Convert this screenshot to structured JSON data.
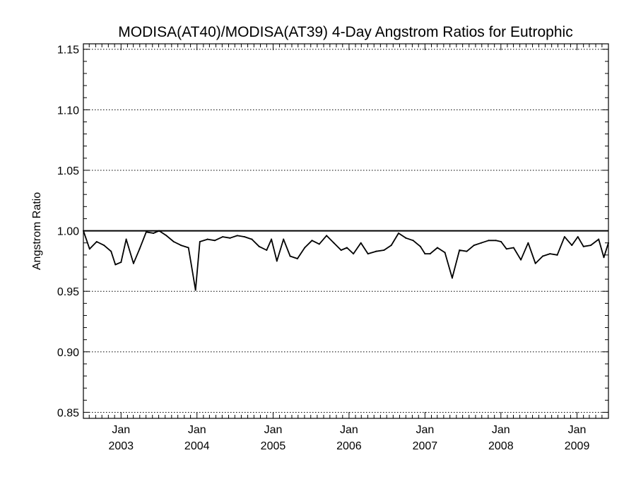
{
  "chart_data": {
    "type": "line",
    "title": "MODISA(AT40)/MODISA(AT39) 4-Day Angstrom Ratios for Eutrophic",
    "xlabel": "",
    "ylabel": "Angstrom Ratio",
    "ylim": [
      0.845,
      1.1545
    ],
    "yticks": [
      0.85,
      0.9,
      0.95,
      1.0,
      1.05,
      1.1,
      1.15
    ],
    "ytick_labels": [
      "0.85",
      "0.90",
      "0.95",
      "1.00",
      "1.05",
      "1.10",
      "1.15"
    ],
    "xlim": [
      "2002-07-04",
      "2009-06-01"
    ],
    "xticks": [
      {
        "date": "2003-01-01",
        "month": "Jan",
        "year": "2003"
      },
      {
        "date": "2004-01-01",
        "month": "Jan",
        "year": "2004"
      },
      {
        "date": "2005-01-01",
        "month": "Jan",
        "year": "2005"
      },
      {
        "date": "2006-01-01",
        "month": "Jan",
        "year": "2006"
      },
      {
        "date": "2007-01-01",
        "month": "Jan",
        "year": "2007"
      },
      {
        "date": "2008-01-01",
        "month": "Jan",
        "year": "2008"
      },
      {
        "date": "2009-01-01",
        "month": "Jan",
        "year": "2009"
      }
    ],
    "grid": "horizontal dotted",
    "reference_line": 1.0,
    "series": [
      {
        "x": [
          "2002-07-04",
          "2002-08-03",
          "2002-09-06",
          "2002-10-11",
          "2002-11-14",
          "2002-12-05",
          "2003-01-01",
          "2003-01-26",
          "2003-03-02",
          "2003-03-31",
          "2003-05-02",
          "2003-06-06",
          "2003-07-03",
          "2003-08-07",
          "2003-09-11",
          "2003-10-16",
          "2003-11-21",
          "2003-12-25",
          "2004-01-15",
          "2004-02-21",
          "2004-03-27",
          "2004-05-04",
          "2004-06-08",
          "2004-07-13",
          "2004-08-17",
          "2004-09-21",
          "2004-10-26",
          "2004-12-01",
          "2004-12-24",
          "2005-01-19",
          "2005-02-20",
          "2005-03-24",
          "2005-04-28",
          "2005-06-02",
          "2005-07-07",
          "2005-08-11",
          "2005-09-15",
          "2005-10-20",
          "2005-11-24",
          "2005-12-22",
          "2006-01-22",
          "2006-02-27",
          "2006-04-02",
          "2006-05-11",
          "2006-06-18",
          "2006-07-23",
          "2006-08-27",
          "2006-10-01",
          "2006-11-05",
          "2006-12-10",
          "2007-01-01",
          "2007-01-26",
          "2007-03-02",
          "2007-04-07",
          "2007-05-12",
          "2007-06-16",
          "2007-07-21",
          "2007-08-25",
          "2007-09-29",
          "2007-11-03",
          "2007-12-08",
          "2008-01-02",
          "2008-01-28",
          "2008-03-02",
          "2008-04-06",
          "2008-05-11",
          "2008-06-15",
          "2008-07-20",
          "2008-08-24",
          "2008-09-28",
          "2008-11-02",
          "2008-12-07",
          "2009-01-05",
          "2009-02-01",
          "2009-03-08",
          "2009-04-15",
          "2009-05-10",
          "2009-06-01"
        ],
        "values": [
          1.0,
          0.985,
          0.991,
          0.988,
          0.983,
          0.972,
          0.974,
          0.993,
          0.973,
          0.985,
          0.999,
          0.998,
          1.0,
          0.996,
          0.991,
          0.988,
          0.986,
          0.951,
          0.991,
          0.993,
          0.992,
          0.995,
          0.994,
          0.996,
          0.995,
          0.993,
          0.987,
          0.984,
          0.993,
          0.975,
          0.993,
          0.979,
          0.977,
          0.986,
          0.992,
          0.989,
          0.996,
          0.99,
          0.984,
          0.986,
          0.981,
          0.99,
          0.981,
          0.983,
          0.984,
          0.988,
          0.998,
          0.994,
          0.992,
          0.987,
          0.981,
          0.981,
          0.986,
          0.982,
          0.961,
          0.984,
          0.983,
          0.988,
          0.99,
          0.992,
          0.992,
          0.991,
          0.985,
          0.986,
          0.976,
          0.99,
          0.973,
          0.979,
          0.981,
          0.98,
          0.995,
          0.988,
          0.995,
          0.987,
          0.988,
          0.993,
          0.978,
          0.99
        ]
      }
    ]
  }
}
